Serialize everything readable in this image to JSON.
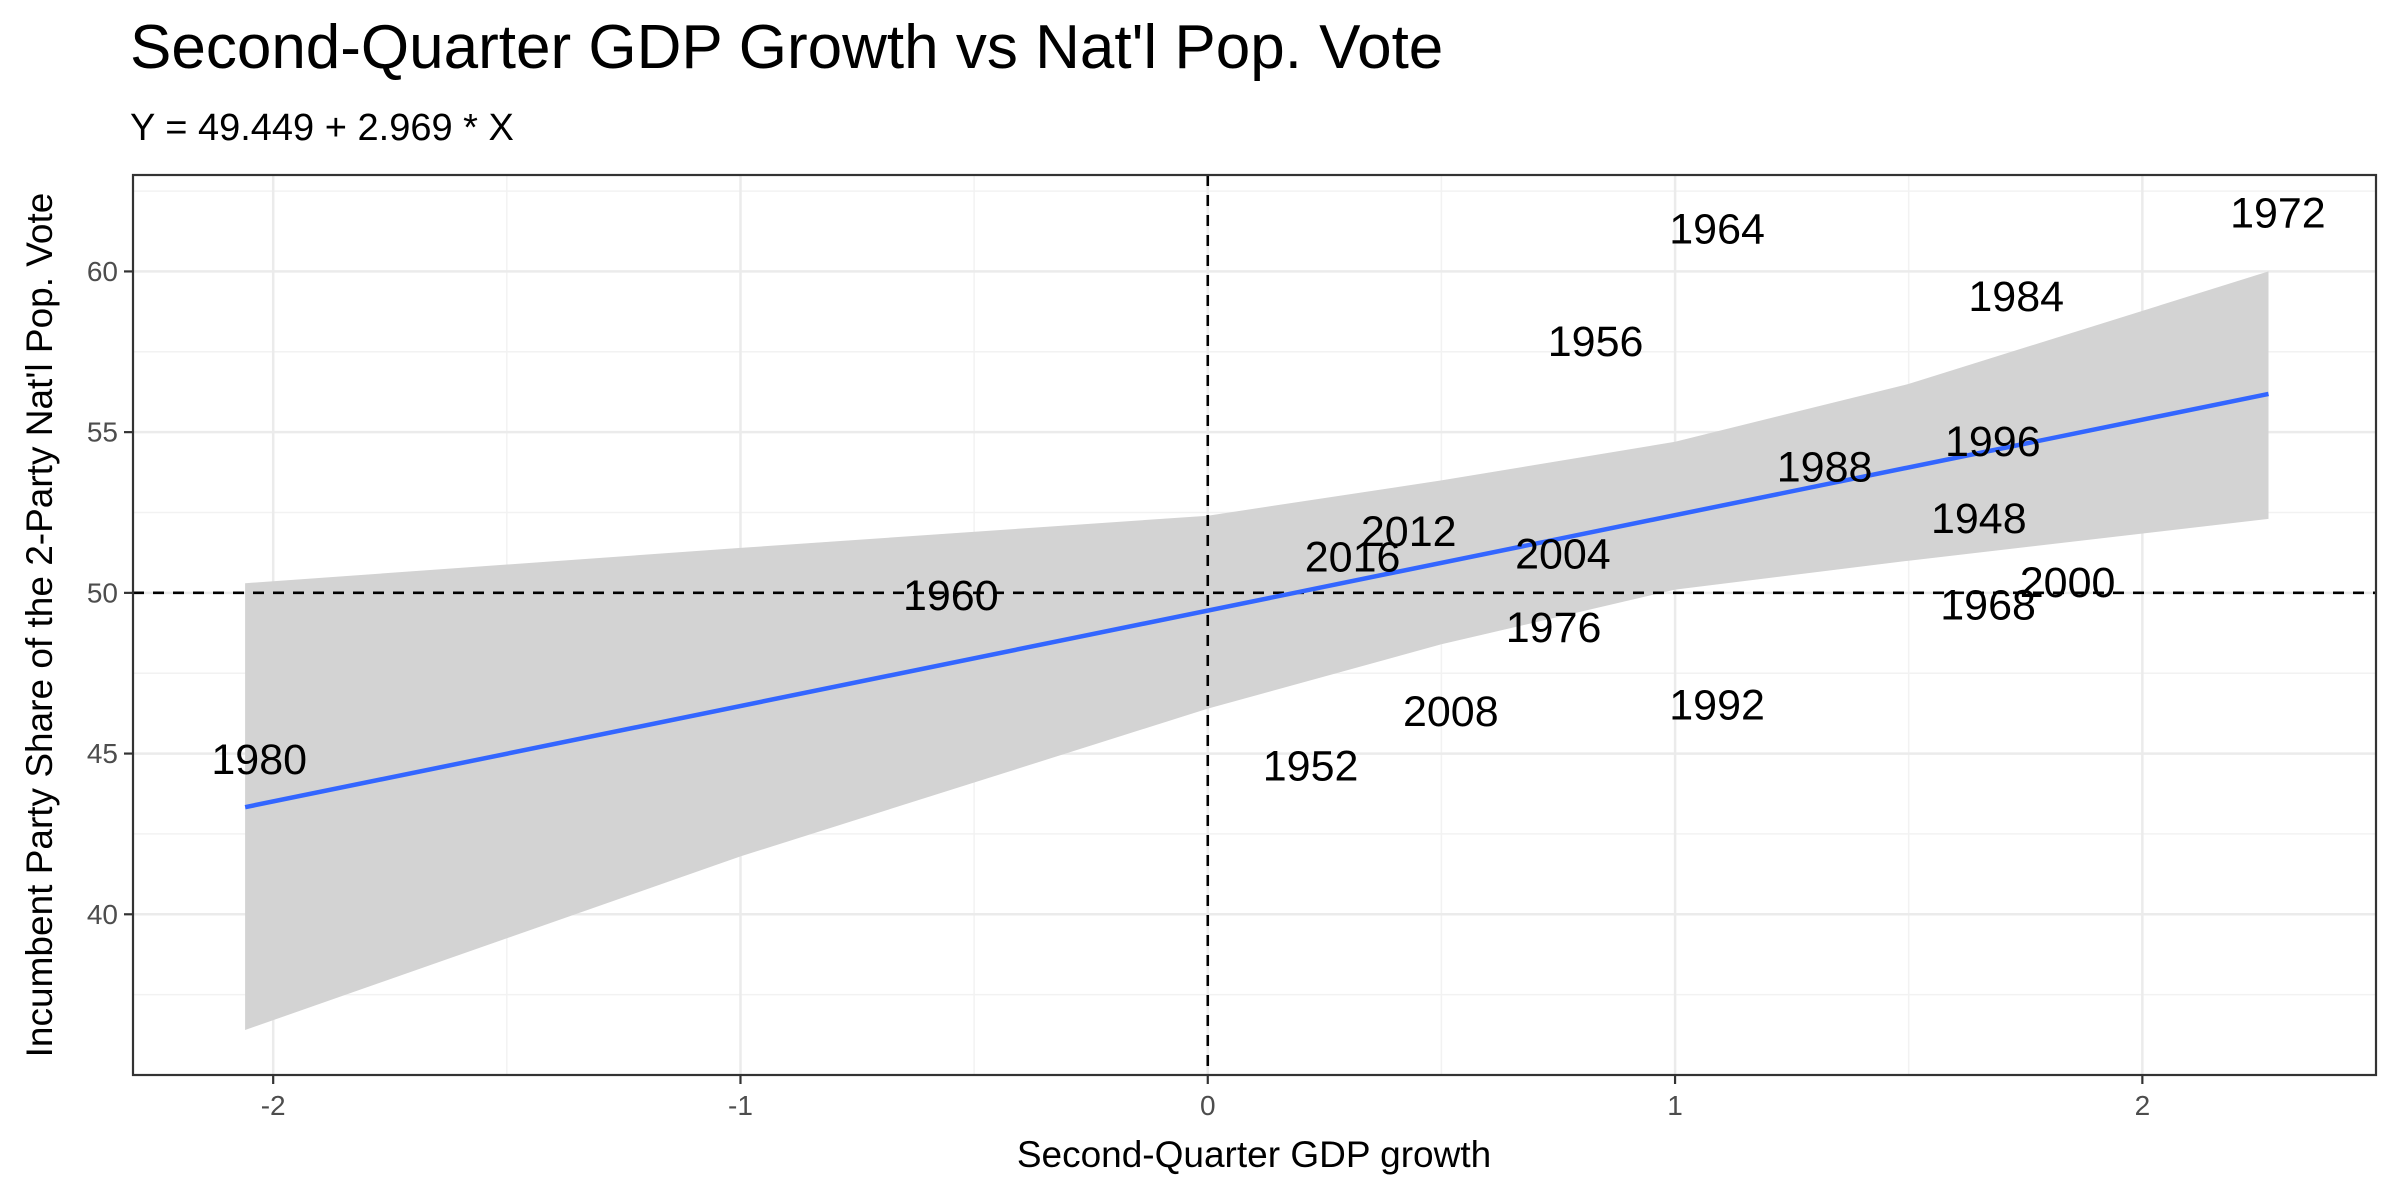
{
  "chart_data": {
    "type": "scatter",
    "title": "Second-Quarter GDP Growth vs Nat'l Pop. Vote",
    "subtitle": "Y = 49.449 + 2.969 * X",
    "xlabel": "Second-Quarter GDP growth",
    "ylabel": "Incumbent Party Share of the 2-Party Nat'l Pop. Vote",
    "xlim": [
      -2.3,
      2.5
    ],
    "ylim": [
      35,
      63
    ],
    "x_ticks": [
      -2,
      -1,
      0,
      1,
      2
    ],
    "x_tick_labels": [
      "-2",
      "-1",
      "0",
      "1",
      "2"
    ],
    "y_ticks": [
      40,
      45,
      50,
      55,
      60
    ],
    "y_tick_labels": [
      "40",
      "45",
      "50",
      "55",
      "60"
    ],
    "grid": true,
    "reference_lines": {
      "x": 0,
      "y": 50,
      "style": "dashed"
    },
    "fit": {
      "intercept": 49.449,
      "slope": 2.969,
      "x_range": [
        -2.06,
        2.27
      ],
      "color": "#3366FF"
    },
    "confidence_band": {
      "color": "#d3d3d3",
      "x": [
        -2.06,
        -1.0,
        0.0,
        0.5,
        1.0,
        1.5,
        2.27
      ],
      "lower": [
        36.4,
        41.8,
        46.4,
        48.4,
        50.1,
        51.0,
        52.3
      ],
      "upper": [
        50.3,
        51.4,
        52.4,
        53.5,
        54.7,
        56.5,
        60.0
      ]
    },
    "points": [
      {
        "label": "1948",
        "x": 1.65,
        "y": 52.3
      },
      {
        "label": "1952",
        "x": 0.22,
        "y": 44.6
      },
      {
        "label": "1956",
        "x": 0.83,
        "y": 57.8
      },
      {
        "label": "1960",
        "x": -0.55,
        "y": 49.9
      },
      {
        "label": "1964",
        "x": 1.09,
        "y": 61.3
      },
      {
        "label": "1968",
        "x": 1.67,
        "y": 49.6
      },
      {
        "label": "1972",
        "x": 2.29,
        "y": 61.8
      },
      {
        "label": "1976",
        "x": 0.74,
        "y": 48.9
      },
      {
        "label": "1980",
        "x": -2.03,
        "y": 44.8
      },
      {
        "label": "1984",
        "x": 1.73,
        "y": 59.2
      },
      {
        "label": "1988",
        "x": 1.32,
        "y": 53.9
      },
      {
        "label": "1992",
        "x": 1.09,
        "y": 46.5
      },
      {
        "label": "1996",
        "x": 1.68,
        "y": 54.7
      },
      {
        "label": "2000",
        "x": 1.84,
        "y": 50.3
      },
      {
        "label": "2004",
        "x": 0.76,
        "y": 51.2
      },
      {
        "label": "2008",
        "x": 0.52,
        "y": 46.3
      },
      {
        "label": "2012",
        "x": 0.43,
        "y": 51.9
      },
      {
        "label": "2016",
        "x": 0.31,
        "y": 51.1
      }
    ]
  }
}
